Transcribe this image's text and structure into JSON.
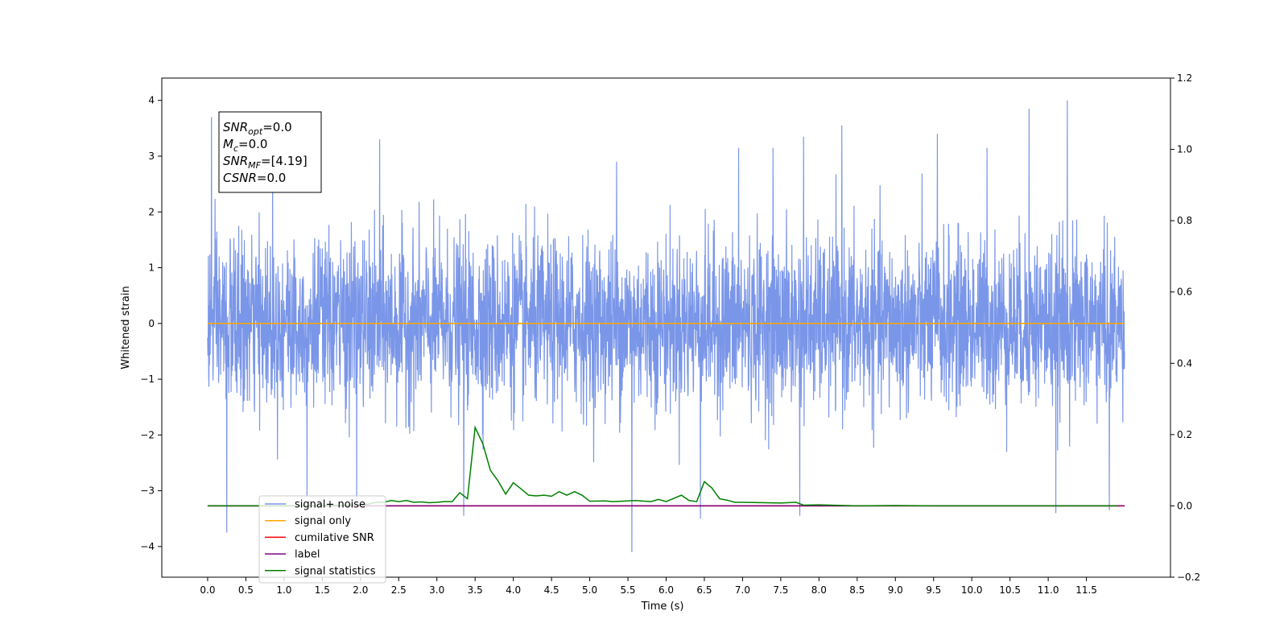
{
  "chart_data": {
    "type": "line",
    "title": "",
    "xlabel": "Time (s)",
    "ylabel": "Whitened strain",
    "xlim": [
      -0.6,
      12.6
    ],
    "ylim": [
      -4.55,
      4.4
    ],
    "y2lim": [
      -0.2,
      1.2
    ],
    "x_ticks": [
      "0.0",
      "0.5",
      "1.0",
      "1.5",
      "2.0",
      "2.5",
      "3.0",
      "3.5",
      "4.0",
      "4.5",
      "5.0",
      "5.5",
      "6.0",
      "6.5",
      "7.0",
      "7.5",
      "8.0",
      "8.5",
      "9.0",
      "9.5",
      "10.0",
      "10.5",
      "11.0",
      "11.5"
    ],
    "y_ticks": [
      "4",
      "3",
      "2",
      "1",
      "0",
      "−1",
      "−2",
      "−3",
      "−4"
    ],
    "y2_ticks": [
      "1.2",
      "1.0",
      "0.8",
      "0.6",
      "0.4",
      "0.2",
      "0.0",
      "−0.2"
    ],
    "grid": false,
    "legend_position": "lower-left",
    "annotation": {
      "lines": [
        {
          "base": "SNR",
          "sub": "opt",
          "value": "=0.0"
        },
        {
          "base": "M",
          "sub": "c",
          "value": "=0.0"
        },
        {
          "base": "SNR",
          "sub": "MF",
          "value": "=[4.19]"
        },
        {
          "base": "CSNR",
          "sub": "",
          "value": "=0.0"
        }
      ]
    },
    "series": [
      {
        "name": "signal+ noise",
        "color": "#7a96e8",
        "axis": "left",
        "description": "whitened noise, amplitude approx. ±2, occasional spikes to ±4",
        "x_range": [
          0.0,
          12.0
        ],
        "spikes": [
          [
            0.05,
            3.7
          ],
          [
            0.25,
            -3.75
          ],
          [
            0.85,
            3.25
          ],
          [
            1.3,
            -3.1
          ],
          [
            1.95,
            -3.25
          ],
          [
            2.25,
            3.3
          ],
          [
            3.35,
            -3.45
          ],
          [
            5.35,
            2.9
          ],
          [
            5.55,
            -4.1
          ],
          [
            6.45,
            -3.5
          ],
          [
            6.95,
            3.15
          ],
          [
            7.4,
            3.15
          ],
          [
            7.75,
            -3.45
          ],
          [
            7.8,
            3.35
          ],
          [
            8.3,
            3.55
          ],
          [
            9.55,
            3.4
          ],
          [
            10.2,
            3.15
          ],
          [
            10.75,
            3.85
          ],
          [
            11.1,
            -3.4
          ],
          [
            11.25,
            4.0
          ],
          [
            11.8,
            -3.35
          ]
        ]
      },
      {
        "name": "signal only",
        "color": "#ffa500",
        "axis": "left",
        "x": [
          0.0,
          12.0
        ],
        "y": [
          0.0,
          0.0
        ]
      },
      {
        "name": "cumilative SNR",
        "color": "#ff0000",
        "axis": "right",
        "x": [
          0.0,
          12.0
        ],
        "y": [
          0.0,
          0.0
        ]
      },
      {
        "name": "label",
        "color": "#800080",
        "axis": "right",
        "x": [
          0.0,
          12.0
        ],
        "y": [
          0.0,
          0.0
        ]
      },
      {
        "name": "signal statistics",
        "color": "#008000",
        "axis": "right",
        "x": [
          0.0,
          0.5,
          1.0,
          1.5,
          1.8,
          2.0,
          2.1,
          2.2,
          2.3,
          2.4,
          2.5,
          2.6,
          2.7,
          2.8,
          2.9,
          3.0,
          3.1,
          3.2,
          3.3,
          3.4,
          3.5,
          3.6,
          3.7,
          3.8,
          3.9,
          4.0,
          4.1,
          4.2,
          4.3,
          4.4,
          4.5,
          4.6,
          4.7,
          4.8,
          4.9,
          5.0,
          5.2,
          5.3,
          5.6,
          5.8,
          5.9,
          6.0,
          6.2,
          6.3,
          6.4,
          6.5,
          6.6,
          6.7,
          6.8,
          6.9,
          7.0,
          7.5,
          7.7,
          7.8,
          8.0,
          8.5,
          9.0,
          9.5,
          10.0,
          11.0,
          11.9
        ],
        "y": [
          0.0,
          0.0,
          0.0,
          0.001,
          0.002,
          0.003,
          0.005,
          0.01,
          0.01,
          0.015,
          0.012,
          0.015,
          0.01,
          0.011,
          0.009,
          0.01,
          0.012,
          0.012,
          0.037,
          0.02,
          0.22,
          0.175,
          0.1,
          0.07,
          0.033,
          0.065,
          0.048,
          0.03,
          0.028,
          0.03,
          0.027,
          0.04,
          0.03,
          0.04,
          0.03,
          0.013,
          0.014,
          0.012,
          0.015,
          0.012,
          0.018,
          0.012,
          0.03,
          0.015,
          0.012,
          0.068,
          0.05,
          0.02,
          0.016,
          0.01,
          0.01,
          0.008,
          0.01,
          0.002,
          0.003,
          0.0,
          0.001,
          0.0,
          0.0,
          0.0,
          0.0
        ]
      }
    ]
  }
}
